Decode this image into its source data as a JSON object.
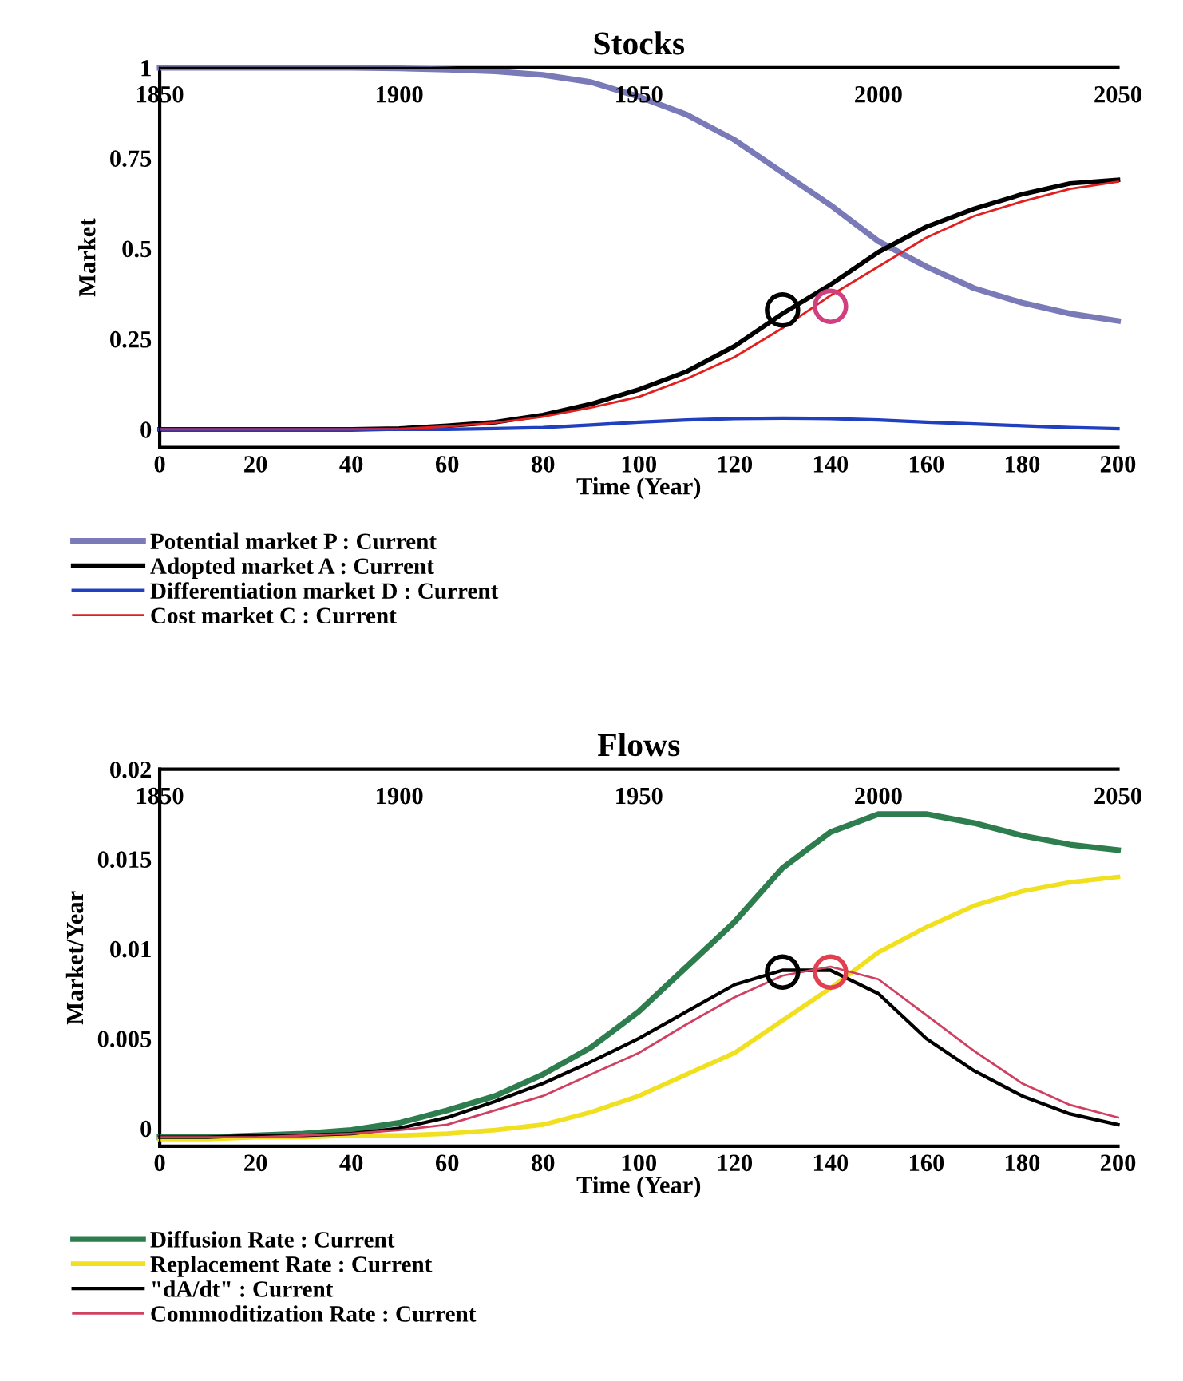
{
  "chart_data": [
    {
      "type": "line",
      "title": "Stocks",
      "xlabel": "Time (Year)",
      "ylabel": "Market",
      "x2label": null,
      "x": [
        0,
        10,
        20,
        30,
        40,
        50,
        60,
        70,
        80,
        90,
        100,
        110,
        120,
        130,
        140,
        150,
        160,
        170,
        180,
        190,
        200
      ],
      "xlim": [
        0,
        200
      ],
      "xticks": [
        0,
        20,
        40,
        60,
        80,
        100,
        120,
        140,
        160,
        180,
        200
      ],
      "x2lim": [
        1850,
        2050
      ],
      "x2ticks": [
        1850,
        1900,
        1950,
        2000,
        2050
      ],
      "ylim": [
        -0.05,
        1
      ],
      "yticks": [
        0,
        0.25,
        0.5,
        0.75,
        1
      ],
      "legend": "bottom",
      "grid": false,
      "series": [
        {
          "name": "Potential market P : Current",
          "color": "#7a7ab8",
          "values": [
            1,
            1,
            1,
            1,
            1,
            0.998,
            0.995,
            0.99,
            0.98,
            0.96,
            0.92,
            0.87,
            0.8,
            0.71,
            0.62,
            0.52,
            0.45,
            0.39,
            0.35,
            0.32,
            0.3
          ]
        },
        {
          "name": "Adopted market A : Current",
          "color": "#000000",
          "values": [
            0,
            0,
            0,
            0,
            0,
            0.002,
            0.01,
            0.02,
            0.04,
            0.07,
            0.11,
            0.16,
            0.23,
            0.32,
            0.4,
            0.49,
            0.56,
            0.61,
            0.65,
            0.68,
            0.69
          ]
        },
        {
          "name": "Differentiation market D : Current",
          "color": "#2040c0",
          "values": [
            0,
            0,
            0,
            0,
            0,
            0,
            0,
            0.002,
            0.005,
            0.012,
            0.02,
            0.026,
            0.03,
            0.031,
            0.03,
            0.026,
            0.02,
            0.015,
            0.01,
            0.005,
            0.002
          ]
        },
        {
          "name": "Cost market C : Current",
          "color": "#e02020",
          "values": [
            0,
            0,
            0,
            0,
            0,
            0.001,
            0.008,
            0.018,
            0.035,
            0.06,
            0.09,
            0.14,
            0.2,
            0.28,
            0.37,
            0.45,
            0.53,
            0.59,
            0.63,
            0.665,
            0.685
          ]
        },
        {
          "type": "scatter",
          "marker": "circle",
          "color": "#000000",
          "values": [
            null,
            null,
            null,
            null,
            null,
            null,
            null,
            null,
            null,
            null,
            null,
            null,
            null,
            0.33,
            null,
            null,
            null,
            null,
            null,
            null,
            null
          ]
        },
        {
          "type": "scatter",
          "marker": "circle",
          "color": "#d04080",
          "values": [
            null,
            null,
            null,
            null,
            null,
            null,
            null,
            null,
            null,
            null,
            null,
            null,
            null,
            null,
            0.34,
            null,
            null,
            null,
            null,
            null,
            null
          ]
        }
      ]
    },
    {
      "type": "line",
      "title": "Flows",
      "xlabel": "Time (Year)",
      "ylabel": "Market/Year",
      "x": [
        0,
        10,
        20,
        30,
        40,
        50,
        60,
        70,
        80,
        90,
        100,
        110,
        120,
        130,
        140,
        150,
        160,
        170,
        180,
        190,
        200
      ],
      "xlim": [
        0,
        200
      ],
      "xticks": [
        0,
        20,
        40,
        60,
        80,
        100,
        120,
        140,
        160,
        180,
        200
      ],
      "x2lim": [
        1850,
        2050
      ],
      "x2ticks": [
        1850,
        1900,
        1950,
        2000,
        2050
      ],
      "ylim": [
        -0.001,
        0.02
      ],
      "yticks": [
        0,
        0.005,
        0.01,
        0.015,
        0.02
      ],
      "legend": "bottom",
      "grid": false,
      "series": [
        {
          "name": "Diffusion Rate : Current",
          "color": "#2e7d4f",
          "values": [
            -0.0005,
            -0.0005,
            -0.0004,
            -0.0003,
            -0.0001,
            0.0003,
            0.001,
            0.0018,
            0.003,
            0.0045,
            0.0065,
            0.009,
            0.0115,
            0.0145,
            0.0165,
            0.0175,
            0.0175,
            0.017,
            0.0163,
            0.0158,
            0.0155
          ]
        },
        {
          "name": "Replacement Rate : Current",
          "color": "#f0e020",
          "values": [
            -0.0006,
            -0.0006,
            -0.0005,
            -0.0005,
            -0.0004,
            -0.0004,
            -0.0003,
            -0.0001,
            0.0002,
            0.0009,
            0.0018,
            0.003,
            0.0042,
            0.006,
            0.0078,
            0.0098,
            0.0112,
            0.0124,
            0.0132,
            0.0137,
            0.014
          ]
        },
        {
          "name": "\"dA/dt\" : Current",
          "color": "#000000",
          "values": [
            -0.0005,
            -0.0005,
            -0.0004,
            -0.0004,
            -0.0003,
            0,
            0.0006,
            0.0015,
            0.0025,
            0.0037,
            0.005,
            0.0065,
            0.008,
            0.0088,
            0.0088,
            0.0075,
            0.005,
            0.0032,
            0.0018,
            0.0008,
            0.0002
          ]
        },
        {
          "name": "Commoditization Rate : Current",
          "color": "#d04060",
          "values": [
            -0.0005,
            -0.0005,
            -0.0005,
            -0.0004,
            -0.0003,
            -0.0001,
            0.0002,
            0.001,
            0.0018,
            0.003,
            0.0042,
            0.0058,
            0.0073,
            0.0085,
            0.009,
            0.0083,
            0.0063,
            0.0043,
            0.0025,
            0.0013,
            0.0006
          ]
        },
        {
          "type": "scatter",
          "marker": "circle",
          "color": "#000000",
          "values": [
            null,
            null,
            null,
            null,
            null,
            null,
            null,
            null,
            null,
            null,
            null,
            null,
            null,
            0.0087,
            null,
            null,
            null,
            null,
            null,
            null,
            null
          ]
        },
        {
          "type": "scatter",
          "marker": "circle",
          "color": "#e04050",
          "values": [
            null,
            null,
            null,
            null,
            null,
            null,
            null,
            null,
            null,
            null,
            null,
            null,
            null,
            null,
            0.0087,
            null,
            null,
            null,
            null,
            null,
            null
          ]
        }
      ]
    }
  ]
}
